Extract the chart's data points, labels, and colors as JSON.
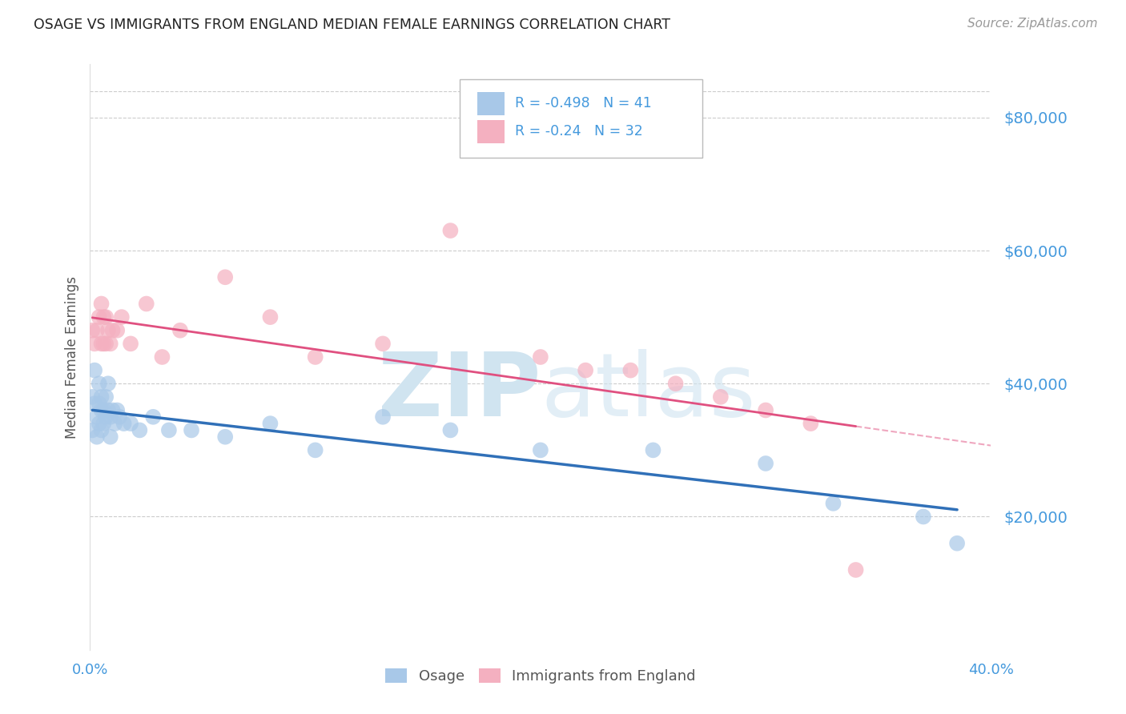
{
  "title": "OSAGE VS IMMIGRANTS FROM ENGLAND MEDIAN FEMALE EARNINGS CORRELATION CHART",
  "source": "Source: ZipAtlas.com",
  "ylabel": "Median Female Earnings",
  "legend_label_blue": "Osage",
  "legend_label_pink": "Immigrants from England",
  "R_osage": -0.498,
  "N_osage": 41,
  "R_england": -0.24,
  "N_england": 32,
  "osage_color": "#a8c8e8",
  "england_color": "#f4b0c0",
  "trend_osage_color": "#3070b8",
  "trend_england_color": "#e05080",
  "title_color": "#222222",
  "ytick_color": "#4499dd",
  "grid_color": "#cccccc",
  "background_color": "#ffffff",
  "watermark_color": "#d0e4f0",
  "xlim": [
    0.0,
    0.4
  ],
  "ylim": [
    0,
    88000
  ],
  "yticks": [
    20000,
    40000,
    60000,
    80000
  ],
  "ytick_labels": [
    "$20,000",
    "$40,000",
    "$60,000",
    "$80,000"
  ],
  "osage_x": [
    0.001,
    0.001,
    0.002,
    0.002,
    0.003,
    0.003,
    0.004,
    0.004,
    0.004,
    0.005,
    0.005,
    0.005,
    0.006,
    0.006,
    0.007,
    0.007,
    0.008,
    0.008,
    0.009,
    0.009,
    0.01,
    0.011,
    0.012,
    0.013,
    0.015,
    0.018,
    0.022,
    0.028,
    0.035,
    0.045,
    0.06,
    0.08,
    0.1,
    0.13,
    0.16,
    0.2,
    0.25,
    0.3,
    0.33,
    0.37,
    0.385
  ],
  "osage_y": [
    38000,
    33000,
    42000,
    37000,
    35000,
    32000,
    40000,
    37000,
    34000,
    38000,
    36000,
    33000,
    36000,
    34000,
    38000,
    35000,
    40000,
    36000,
    35000,
    32000,
    36000,
    34000,
    36000,
    35000,
    34000,
    34000,
    33000,
    35000,
    33000,
    33000,
    32000,
    34000,
    30000,
    35000,
    33000,
    30000,
    30000,
    28000,
    22000,
    20000,
    16000
  ],
  "england_x": [
    0.001,
    0.002,
    0.003,
    0.004,
    0.005,
    0.005,
    0.006,
    0.006,
    0.007,
    0.007,
    0.008,
    0.009,
    0.01,
    0.012,
    0.014,
    0.018,
    0.025,
    0.032,
    0.04,
    0.06,
    0.08,
    0.1,
    0.13,
    0.16,
    0.2,
    0.22,
    0.24,
    0.26,
    0.28,
    0.3,
    0.32,
    0.34
  ],
  "england_y": [
    48000,
    46000,
    48000,
    50000,
    52000,
    46000,
    50000,
    46000,
    50000,
    46000,
    48000,
    46000,
    48000,
    48000,
    50000,
    46000,
    52000,
    44000,
    48000,
    56000,
    50000,
    44000,
    46000,
    63000,
    44000,
    42000,
    42000,
    40000,
    38000,
    36000,
    34000,
    12000
  ]
}
